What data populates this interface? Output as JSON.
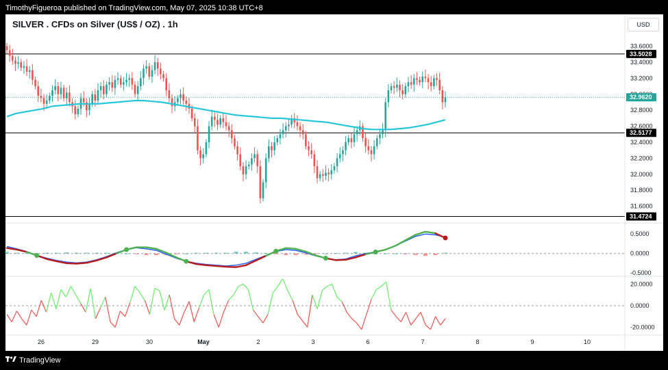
{
  "header": {
    "publish_line": "TimothyFigueroa published on TradingView.com, May 07, 2025 10:38 UTC+8",
    "title": "SILVER . CFDs on Silver (US$ / OZ) . 1h",
    "currency": "USD"
  },
  "footer": {
    "logo_icon": "tradingview-logo-icon",
    "brand": "TradingView"
  },
  "colors": {
    "up": "#26a69a",
    "down": "#ef5350",
    "ma": "#26c6da",
    "osc_fast": "#2962ff",
    "osc_slow_up": "#4caf50",
    "osc_slow_down": "#b71c1c",
    "rsi_up": "#66ee66",
    "rsi_down": "#ef5350"
  },
  "chart_data": [
    {
      "type": "candlestick",
      "title": "SILVER . CFDs on Silver (US$ / OZ) . 1h",
      "ylim": [
        31.4,
        33.75
      ],
      "yticks": [
        "33.6000",
        "33.4000",
        "33.2000",
        "33.0000",
        "32.8000",
        "32.6000",
        "32.4000",
        "32.2000",
        "32.0000",
        "31.8000",
        "31.6000"
      ],
      "xticks": [
        "26",
        "29",
        "30",
        "May",
        "2",
        "3",
        "6",
        "7",
        "8",
        "9",
        "10"
      ],
      "horizontal_levels": [
        {
          "label": "33.5028",
          "value": 33.5028
        },
        {
          "label": "32.5177",
          "value": 32.5177
        },
        {
          "label": "31.4724",
          "value": 31.4724
        }
      ],
      "last_price": {
        "label": "32.9620",
        "value": 32.962
      },
      "closes": [
        33.55,
        33.48,
        33.42,
        33.38,
        33.4,
        33.33,
        33.35,
        33.28,
        33.3,
        33.18,
        33.1,
        32.98,
        32.95,
        32.88,
        32.92,
        32.98,
        33.05,
        33.1,
        33.0,
        33.08,
        32.95,
        33.02,
        32.9,
        32.85,
        32.75,
        32.82,
        32.95,
        32.9,
        32.8,
        32.88,
        33.0,
        32.92,
        33.05,
        33.1,
        33.0,
        33.12,
        33.15,
        33.08,
        33.18,
        33.2,
        33.12,
        33.15,
        33.18,
        33.2,
        33.12,
        33.0,
        33.1,
        33.2,
        33.32,
        33.35,
        33.22,
        33.3,
        33.4,
        33.32,
        33.25,
        33.2,
        33.05,
        32.95,
        32.85,
        32.9,
        32.95,
        33.0,
        32.92,
        32.88,
        32.82,
        32.7,
        32.6,
        32.3,
        32.2,
        32.25,
        32.4,
        32.6,
        32.72,
        32.68,
        32.62,
        32.7,
        32.65,
        32.6,
        32.55,
        32.45,
        32.35,
        32.25,
        32.1,
        32.0,
        32.1,
        32.12,
        32.2,
        32.25,
        32.1,
        31.7,
        31.9,
        32.2,
        32.35,
        32.3,
        32.4,
        32.45,
        32.5,
        32.55,
        32.6,
        32.62,
        32.7,
        32.65,
        32.6,
        32.55,
        32.5,
        32.35,
        32.3,
        32.25,
        32.1,
        31.95,
        32.0,
        31.98,
        32.02,
        32.0,
        32.05,
        32.1,
        32.2,
        32.25,
        32.3,
        32.4,
        32.45,
        32.4,
        32.5,
        32.55,
        32.6,
        32.45,
        32.35,
        32.3,
        32.25,
        32.35,
        32.45,
        32.5,
        32.55,
        32.9,
        33.05,
        33.1,
        33.08,
        33.12,
        33.05,
        33.0,
        33.1,
        33.15,
        33.12,
        33.2,
        33.18,
        33.15,
        33.22,
        33.2,
        33.15,
        33.1,
        33.2,
        33.18,
        33.05,
        32.9,
        32.96
      ],
      "ma_values": [
        32.72,
        32.76,
        32.78,
        32.8,
        32.82,
        32.85,
        32.86,
        32.87,
        32.88,
        32.88,
        32.88,
        32.89,
        32.9,
        32.91,
        32.92,
        32.92,
        32.91,
        32.9,
        32.88,
        32.86,
        32.84,
        32.82,
        32.8,
        32.78,
        32.76,
        32.74,
        32.73,
        32.72,
        32.71,
        32.7,
        32.7,
        32.69,
        32.68,
        32.67,
        32.66,
        32.65,
        32.63,
        32.61,
        32.59,
        32.57,
        32.56,
        32.56,
        32.56,
        32.57,
        32.58,
        32.6,
        32.62,
        32.65,
        32.68
      ]
    },
    {
      "type": "line",
      "name": "oscillator",
      "ylim": [
        -0.55,
        0.75
      ],
      "yticks": [
        "0.5000",
        "0.0000",
        "-0.5000"
      ],
      "fast": [
        0.18,
        0.12,
        0.05,
        -0.05,
        -0.12,
        -0.18,
        -0.22,
        -0.24,
        -0.22,
        -0.16,
        -0.08,
        0.02,
        0.1,
        0.15,
        0.12,
        0.08,
        -0.02,
        -0.12,
        -0.2,
        -0.25,
        -0.28,
        -0.3,
        -0.32,
        -0.3,
        -0.25,
        -0.15,
        -0.05,
        0.05,
        0.1,
        0.08,
        0.02,
        -0.06,
        -0.12,
        -0.16,
        -0.14,
        -0.06,
        0.0,
        0.04,
        0.1,
        0.2,
        0.32,
        0.44,
        0.5,
        0.48,
        0.42
      ],
      "slow": [
        0.14,
        0.1,
        0.04,
        -0.05,
        -0.14,
        -0.2,
        -0.25,
        -0.26,
        -0.24,
        -0.18,
        -0.1,
        0.0,
        0.1,
        0.16,
        0.16,
        0.12,
        0.02,
        -0.1,
        -0.2,
        -0.27,
        -0.3,
        -0.32,
        -0.34,
        -0.35,
        -0.3,
        -0.18,
        -0.06,
        0.06,
        0.14,
        0.12,
        0.05,
        -0.05,
        -0.12,
        -0.17,
        -0.16,
        -0.1,
        -0.02,
        0.04,
        0.1,
        0.2,
        0.34,
        0.48,
        0.56,
        0.52,
        0.4
      ],
      "histogram": [
        0.04,
        0.02,
        0.01,
        0.0,
        0.02,
        0.02,
        0.03,
        0.02,
        0.02,
        0.02,
        0.02,
        0.02,
        0.0,
        -0.01,
        -0.04,
        -0.04,
        -0.04,
        -0.02,
        0.0,
        0.02,
        0.02,
        0.02,
        0.02,
        0.05,
        0.05,
        0.03,
        0.01,
        -0.01,
        -0.04,
        -0.04,
        -0.03,
        -0.01,
        0.0,
        0.01,
        0.02,
        0.04,
        0.02,
        0.0,
        0.0,
        0.0,
        -0.02,
        -0.04,
        -0.06,
        -0.04,
        0.02
      ]
    },
    {
      "type": "line",
      "name": "momentum",
      "ylim": [
        -26,
        26
      ],
      "yticks": [
        "20.0000",
        "0.0000",
        "-20.0000"
      ],
      "values": [
        -8,
        -15,
        -5,
        -12,
        -18,
        -4,
        -10,
        5,
        -6,
        12,
        -3,
        15,
        8,
        18,
        10,
        2,
        -6,
        16,
        -12,
        -2,
        8,
        -15,
        -20,
        -5,
        -10,
        3,
        18,
        12,
        5,
        -8,
        16,
        14,
        -4,
        10,
        -12,
        -18,
        -6,
        4,
        -15,
        -2,
        10,
        15,
        -8,
        -20,
        -6,
        5,
        10,
        18,
        20,
        15,
        -4,
        -10,
        -16,
        -8,
        12,
        18,
        25,
        14,
        5,
        -8,
        -14,
        -20,
        10,
        -3,
        14,
        18,
        20,
        8,
        4,
        -6,
        -12,
        -16,
        -22,
        -8,
        6,
        15,
        18,
        22,
        -4,
        -10,
        -15,
        -6,
        -18,
        -12,
        -6,
        -18,
        -22,
        -10,
        -18,
        -12
      ]
    }
  ]
}
